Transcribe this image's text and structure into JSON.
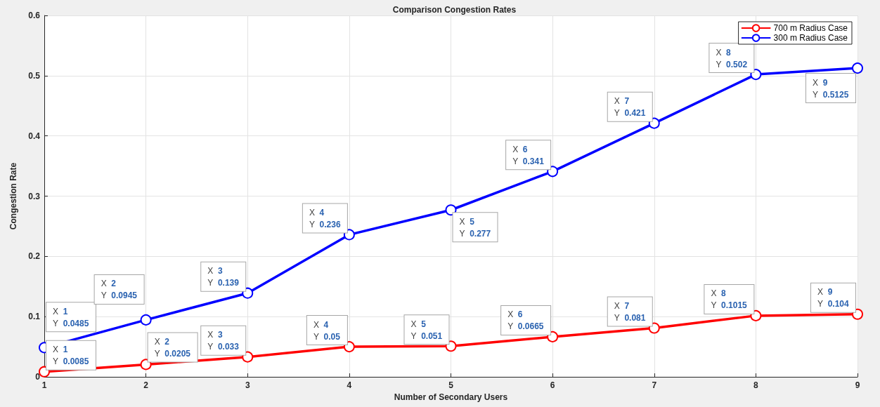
{
  "chart_data": {
    "type": "line",
    "title": "Comparison Congestion Rates",
    "xlabel": "Number of Secondary Users",
    "ylabel": "Congestion Rate",
    "x": [
      1,
      2,
      3,
      4,
      5,
      6,
      7,
      8,
      9
    ],
    "series": [
      {
        "name": "700 m Radius Case",
        "color": "#ff0000",
        "values": [
          0.0085,
          0.0205,
          0.033,
          0.05,
          0.051,
          0.0665,
          0.081,
          0.1015,
          0.104
        ],
        "value_labels": [
          "X 1\nY 0.0085",
          "X 2\nY 0.0205",
          "X 3\nY 0.033",
          "X 4\nY 0.05",
          "X 5\nY 0.051",
          "X 6\nY 0.0665",
          "X 7\nY 0.081",
          "X 8\nY 0.1015",
          "X 9\nY 0.104"
        ]
      },
      {
        "name": "300 m Radius Case",
        "color": "#0000ff",
        "values": [
          0.0485,
          0.0945,
          0.139,
          0.236,
          0.277,
          0.341,
          0.421,
          0.502,
          0.5125
        ],
        "value_labels": [
          "X 1\nY 0.0485",
          "X 2\nY 0.0945",
          "X 3\nY 0.139",
          "X 4\nY 0.236",
          "X 5\nY 0.277",
          "X 6\nY 0.341",
          "X 7\nY 0.421",
          "X 8\nY 0.502",
          "X 9\nY 0.5125"
        ]
      }
    ],
    "xlim": [
      1,
      9
    ],
    "xticks": [
      1,
      2,
      3,
      4,
      5,
      6,
      7,
      8,
      9
    ],
    "ylim": [
      0,
      0.6
    ],
    "yticks": [
      0,
      0.1,
      0.2,
      0.3,
      0.4,
      0.5,
      0.6
    ],
    "grid": true,
    "legend": "top right",
    "marker": "circle",
    "line_style": "solid"
  }
}
